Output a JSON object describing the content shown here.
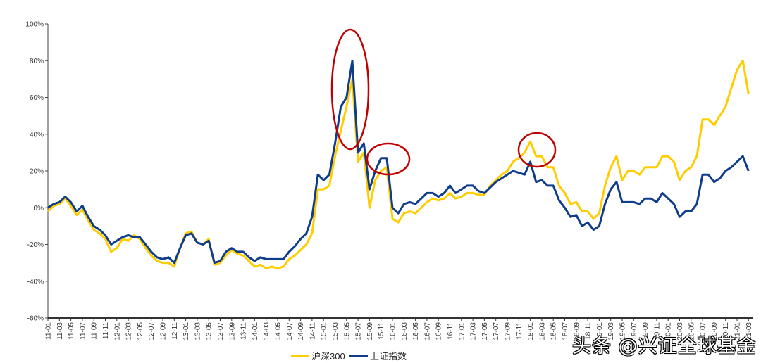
{
  "chart_data": {
    "type": "line",
    "title": "",
    "xlabel": "",
    "ylabel": "",
    "ylim": [
      -60,
      100
    ],
    "yticks": [
      "100%",
      "80%",
      "60%",
      "40%",
      "20%",
      "0%",
      "-20%",
      "-40%",
      "-60%"
    ],
    "ytick_values": [
      100,
      80,
      60,
      40,
      20,
      0,
      -20,
      -40,
      -60
    ],
    "x_start": "11-01",
    "x_end": "21-03",
    "x_tick_labels": [
      "11-01",
      "11-03",
      "11-05",
      "11-07",
      "11-09",
      "11-11",
      "12-01",
      "12-03",
      "12-05",
      "12-07",
      "12-09",
      "12-11",
      "13-01",
      "13-03",
      "13-05",
      "13-07",
      "13-09",
      "13-11",
      "14-01",
      "14-03",
      "14-05",
      "14-07",
      "14-09",
      "14-11",
      "15-01",
      "15-03",
      "15-05",
      "15-07",
      "15-09",
      "15-11",
      "16-01",
      "16-03",
      "16-05",
      "16-07",
      "16-09",
      "16-11",
      "17-01",
      "17-03",
      "17-05",
      "17-07",
      "17-09",
      "17-11",
      "18-01",
      "18-03",
      "18-05",
      "18-07",
      "18-09",
      "18-11",
      "19-01",
      "19-03",
      "19-05",
      "19-07",
      "19-09",
      "19-11",
      "20-01",
      "20-03",
      "20-05",
      "20-07",
      "20-09",
      "20-11",
      "21-01",
      "21-03"
    ],
    "grid": false,
    "legend_position": "bottom-center",
    "series": [
      {
        "name": "沪深300",
        "color": "#FFCC00",
        "values": [
          -2,
          1,
          2,
          5,
          1,
          -4,
          -1,
          -7,
          -12,
          -14,
          -17,
          -24,
          -22,
          -17,
          -18,
          -15,
          -17,
          -22,
          -26,
          -29,
          -30,
          -30,
          -32,
          -22,
          -14,
          -13,
          -19,
          -20,
          -17,
          -31,
          -30,
          -26,
          -23,
          -25,
          -26,
          -29,
          -32,
          -31,
          -33,
          -32,
          -33,
          -32,
          -28,
          -26,
          -23,
          -20,
          -14,
          10,
          10,
          12,
          28,
          42,
          55,
          70,
          25,
          30,
          0,
          15,
          20,
          22,
          -6,
          -8,
          -3,
          -2,
          -3,
          0,
          3,
          5,
          4,
          5,
          8,
          5,
          6,
          8,
          8,
          7,
          7,
          12,
          15,
          18,
          20,
          25,
          27,
          30,
          36,
          28,
          28,
          22,
          22,
          12,
          8,
          2,
          3,
          -2,
          -2,
          -6,
          -3,
          12,
          22,
          28,
          15,
          20,
          20,
          18,
          22,
          22,
          22,
          28,
          28,
          25,
          15,
          20,
          22,
          28,
          48,
          48,
          45,
          50,
          55,
          65,
          75,
          80,
          62
        ]
      },
      {
        "name": "上证指数",
        "color": "#0F3D8C",
        "values": [
          0,
          2,
          3,
          6,
          3,
          -2,
          1,
          -5,
          -10,
          -12,
          -15,
          -20,
          -18,
          -16,
          -15,
          -16,
          -16,
          -20,
          -24,
          -27,
          -28,
          -27,
          -30,
          -22,
          -15,
          -14,
          -19,
          -20,
          -18,
          -30,
          -29,
          -24,
          -22,
          -24,
          -24,
          -27,
          -29,
          -27,
          -28,
          -28,
          -28,
          -28,
          -24,
          -21,
          -17,
          -14,
          -5,
          18,
          15,
          18,
          35,
          55,
          60,
          80,
          30,
          35,
          10,
          20,
          27,
          27,
          0,
          -3,
          2,
          3,
          2,
          5,
          8,
          8,
          6,
          8,
          12,
          8,
          10,
          12,
          12,
          9,
          8,
          11,
          14,
          16,
          18,
          20,
          19,
          18,
          25,
          14,
          15,
          12,
          12,
          4,
          0,
          -5,
          -4,
          -10,
          -8,
          -12,
          -10,
          2,
          10,
          14,
          3,
          3,
          3,
          2,
          5,
          5,
          3,
          8,
          5,
          2,
          -5,
          -2,
          -2,
          2,
          18,
          18,
          14,
          16,
          20,
          22,
          25,
          28,
          20
        ]
      }
    ],
    "annotation_color": "#C00000"
  },
  "watermark": "头条 @兴证全球基金"
}
